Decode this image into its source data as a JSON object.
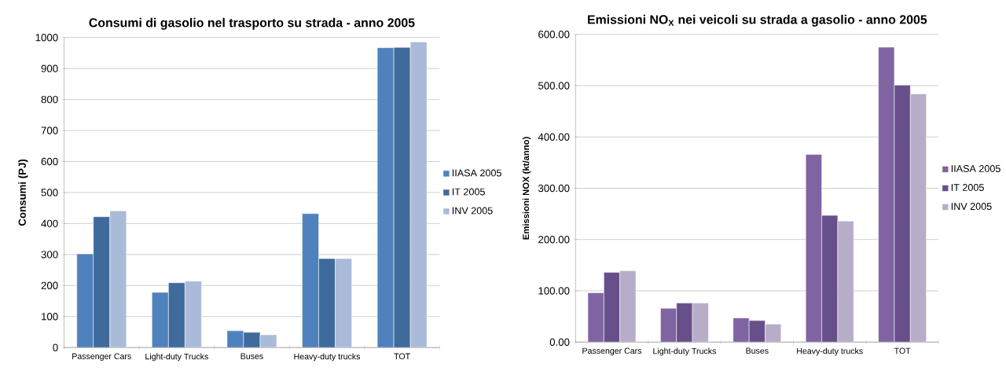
{
  "chart_data": [
    {
      "type": "bar",
      "title": "Consumi di gasolio nel trasporto su strada - anno 2005",
      "ylabel": "Consumi (PJ)",
      "categories": [
        "Passenger Cars",
        "Light-duty Trucks",
        "Buses",
        "Heavy-duty trucks",
        "TOT"
      ],
      "series": [
        {
          "name": "IIASA 2005",
          "color": "#4f81bd",
          "values": [
            302,
            178,
            54,
            432,
            967
          ]
        },
        {
          "name": "IT 2005",
          "color": "#3f6a9c",
          "values": [
            422,
            209,
            49,
            287,
            968
          ]
        },
        {
          "name": "INV 2005",
          "color": "#aabbd9",
          "values": [
            441,
            214,
            41,
            287,
            986
          ]
        }
      ],
      "ylim": [
        0,
        1000
      ],
      "yticks": [
        0,
        100,
        200,
        300,
        400,
        500,
        600,
        700,
        800,
        900,
        1000
      ],
      "grid": "y",
      "legend": "right"
    },
    {
      "type": "bar",
      "title": "Emissioni NO$_{X}$ nei veicoli su strada a gasolio - anno 2005",
      "ylabel": "Emissioni NOX (kt/anno)",
      "categories": [
        "Passenger Cars",
        "Light-duty Trucks",
        "Buses",
        "Heavy-duty trucks",
        "TOT"
      ],
      "series": [
        {
          "name": "IIASA 2005",
          "color": "#8064a2",
          "values": [
            96,
            66,
            47,
            366,
            575
          ]
        },
        {
          "name": "IT 2005",
          "color": "#67508a",
          "values": [
            136,
            76,
            42,
            247,
            501
          ]
        },
        {
          "name": "INV 2005",
          "color": "#b8adc9",
          "values": [
            139,
            76,
            35,
            236,
            484
          ]
        }
      ],
      "ylim": [
        0,
        600
      ],
      "yticks": [
        {
          "value": 0,
          "label": "0.00"
        },
        {
          "value": 100,
          "label": "100.00"
        },
        {
          "value": 200,
          "label": "200.00"
        },
        {
          "value": 300,
          "label": "300.00"
        },
        {
          "value": 400,
          "label": "400.00"
        },
        {
          "value": 500,
          "label": "500.00"
        },
        {
          "value": 600,
          "label": "600.00"
        }
      ],
      "grid": "y",
      "legend": "right"
    }
  ]
}
